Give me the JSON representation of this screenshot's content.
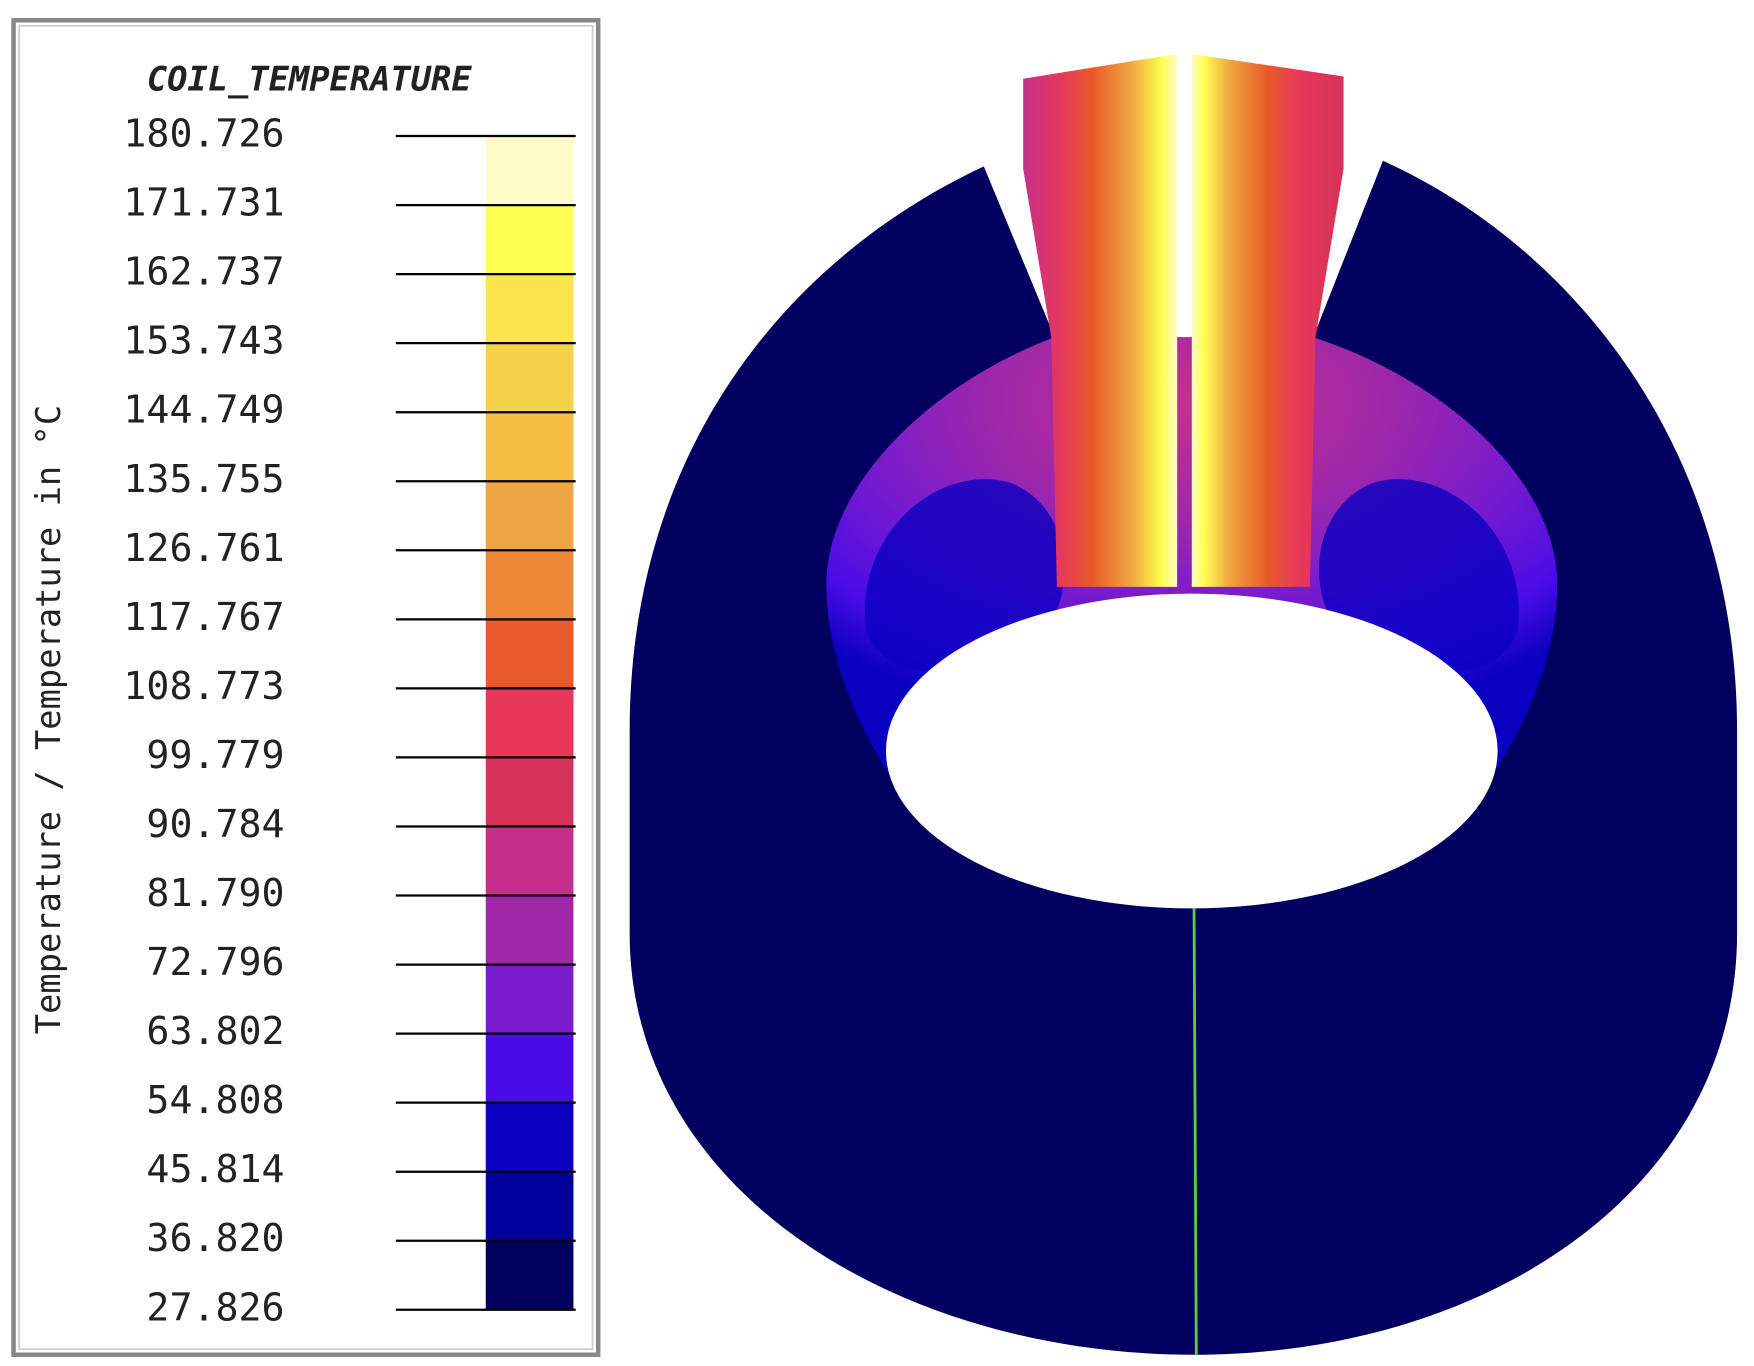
{
  "legend": {
    "title": "COIL_TEMPERATURE",
    "axis_label": "Temperature / Temperature in °C",
    "ticks": [
      "180.726",
      "171.731",
      "162.737",
      "153.743",
      "144.749",
      "135.755",
      "126.761",
      "117.767",
      "108.773",
      "99.779",
      "90.784",
      "81.790",
      "72.796",
      "63.802",
      "54.808",
      "45.814",
      "36.820",
      "27.826"
    ],
    "colors": [
      "#fffcc8",
      "#ffff50",
      "#fbe54c",
      "#f6d24a",
      "#f4bf44",
      "#f0a640",
      "#ec8738",
      "#e85a2a",
      "#e8385a",
      "#d6325a",
      "#c4308a",
      "#a028a8",
      "#7a1ccc",
      "#4a0ce6",
      "#0a00c0",
      "#00009a",
      "#000060"
    ]
  }
}
